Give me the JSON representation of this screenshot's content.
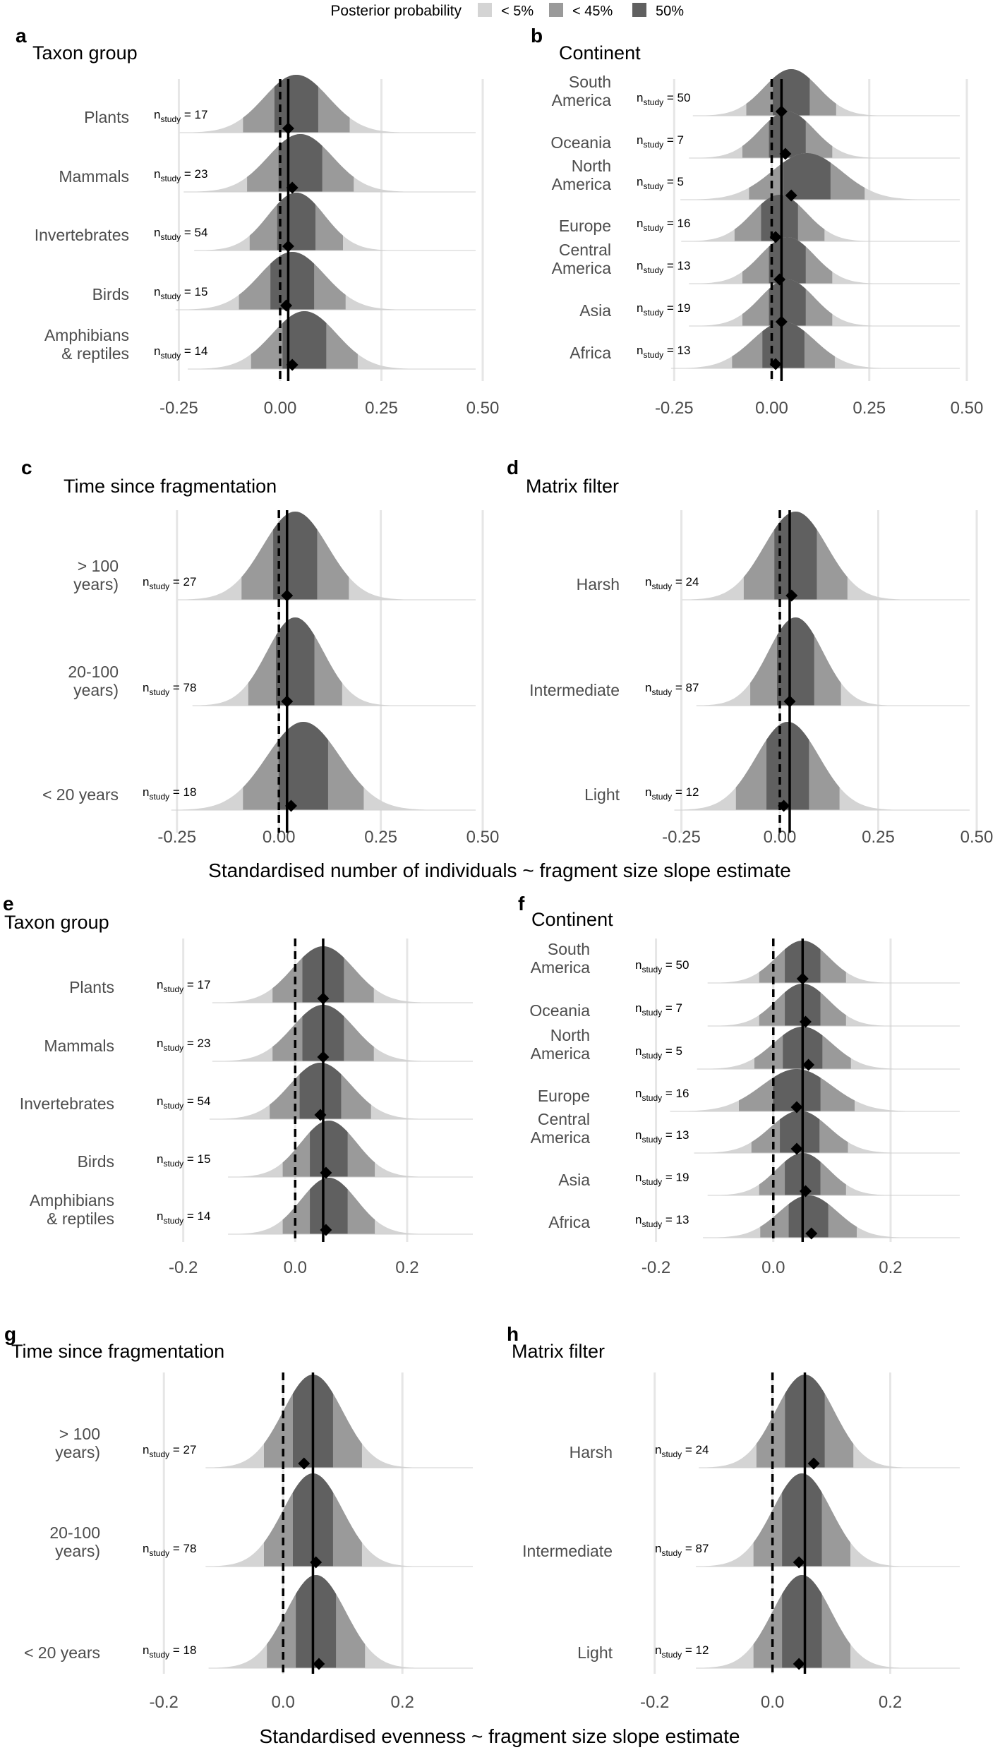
{
  "legend": {
    "title": "Posterior probability",
    "items": [
      {
        "label": "< 5%",
        "color": "#d4d4d4"
      },
      {
        "label": "< 45%",
        "color": "#9a9a9a"
      },
      {
        "label": "50%",
        "color": "#606060"
      }
    ]
  },
  "xlabels": {
    "top": "Standardised number of individuals ~ fragment size slope estimate",
    "bottom": "Standardised evenness ~ fragment size slope estimate"
  },
  "n_prefix": "n",
  "n_sub": "study",
  "chart_data": [
    {
      "id": "a",
      "letter": "a",
      "type": "area",
      "title": "Taxon group",
      "xlim": [
        -0.35,
        0.5
      ],
      "xticks": [
        -0.25,
        0,
        0.25,
        0.5
      ],
      "tick_labels": [
        "-0.25",
        "0.00",
        "0.25",
        "0.50"
      ],
      "dashed_x": 0,
      "solid_x": 0.02,
      "rows": [
        {
          "label": "Plants",
          "n": 17,
          "mean": 0.04,
          "sd": 0.08,
          "point": 0.02
        },
        {
          "label": "Mammals",
          "n": 23,
          "mean": 0.05,
          "sd": 0.08,
          "point": 0.03
        },
        {
          "label": "Invertebrates",
          "n": 54,
          "mean": 0.04,
          "sd": 0.07,
          "point": 0.02
        },
        {
          "label": "Birds",
          "n": 15,
          "mean": 0.03,
          "sd": 0.08,
          "point": 0.015
        },
        {
          "label": "Amphibians\n& reptiles",
          "n": 14,
          "mean": 0.06,
          "sd": 0.08,
          "point": 0.03
        }
      ]
    },
    {
      "id": "b",
      "letter": "b",
      "type": "area",
      "title": "Continent",
      "xlim": [
        -0.35,
        0.5
      ],
      "xticks": [
        -0.25,
        0,
        0.25,
        0.5
      ],
      "tick_labels": [
        "-0.25",
        "0.00",
        "0.25",
        "0.50"
      ],
      "dashed_x": 0,
      "solid_x": 0.025,
      "rows": [
        {
          "label": "South\nAmerica",
          "n": 50,
          "mean": 0.05,
          "sd": 0.07,
          "point": 0.025
        },
        {
          "label": "Oceania",
          "n": 7,
          "mean": 0.04,
          "sd": 0.07,
          "point": 0.035
        },
        {
          "label": "North\nAmerica",
          "n": 5,
          "mean": 0.09,
          "sd": 0.09,
          "point": 0.05
        },
        {
          "label": "Europe",
          "n": 16,
          "mean": 0.02,
          "sd": 0.07,
          "point": 0.01
        },
        {
          "label": "Central\nAmerica",
          "n": 13,
          "mean": 0.04,
          "sd": 0.07,
          "point": 0.02
        },
        {
          "label": "Asia",
          "n": 19,
          "mean": 0.04,
          "sd": 0.07,
          "point": 0.025
        },
        {
          "label": "Africa",
          "n": 13,
          "mean": 0.03,
          "sd": 0.08,
          "point": 0.01
        }
      ]
    },
    {
      "id": "c",
      "letter": "c",
      "type": "area",
      "title": "Time since fragmentation",
      "xlim": [
        -0.35,
        0.5
      ],
      "xticks": [
        -0.25,
        0,
        0.25,
        0.5
      ],
      "tick_labels": [
        "-0.25",
        "0.00",
        "0.25",
        "0.50"
      ],
      "dashed_x": 0,
      "solid_x": 0.02,
      "rows": [
        {
          "label": "> 100\nyears)",
          "n": 27,
          "mean": 0.04,
          "sd": 0.08,
          "point": 0.02
        },
        {
          "label": "20-100\nyears)",
          "n": 78,
          "mean": 0.04,
          "sd": 0.07,
          "point": 0.02
        },
        {
          "label": "< 20 years",
          "n": 18,
          "mean": 0.06,
          "sd": 0.09,
          "point": 0.03
        }
      ]
    },
    {
      "id": "d",
      "letter": "d",
      "type": "area",
      "title": "Matrix filter",
      "xlim": [
        -0.38,
        0.5
      ],
      "xticks": [
        -0.25,
        0,
        0.25,
        0.5
      ],
      "tick_labels": [
        "-0.25",
        "0.00",
        "0.25",
        "0.50"
      ],
      "dashed_x": 0,
      "solid_x": 0.025,
      "rows": [
        {
          "label": "Harsh",
          "n": 24,
          "mean": 0.04,
          "sd": 0.08,
          "point": 0.03
        },
        {
          "label": "Intermediate",
          "n": 87,
          "mean": 0.04,
          "sd": 0.07,
          "point": 0.025
        },
        {
          "label": "Light",
          "n": 12,
          "mean": 0.02,
          "sd": 0.08,
          "point": 0.01
        }
      ]
    },
    {
      "id": "e",
      "letter": "e",
      "type": "area",
      "title": "Taxon group",
      "xlim": [
        -0.25,
        0.33
      ],
      "xticks": [
        -0.2,
        0,
        0.2
      ],
      "tick_labels": [
        "-0.2",
        "0.0",
        "0.2"
      ],
      "dashed_x": 0,
      "solid_x": 0.05,
      "rows": [
        {
          "label": "Plants",
          "n": 17,
          "mean": 0.05,
          "sd": 0.055,
          "point": 0.05
        },
        {
          "label": "Mammals",
          "n": 23,
          "mean": 0.05,
          "sd": 0.055,
          "point": 0.05
        },
        {
          "label": "Invertebrates",
          "n": 54,
          "mean": 0.045,
          "sd": 0.055,
          "point": 0.045
        },
        {
          "label": "Birds",
          "n": 15,
          "mean": 0.06,
          "sd": 0.05,
          "point": 0.055
        },
        {
          "label": "Amphibians\n& reptiles",
          "n": 14,
          "mean": 0.06,
          "sd": 0.05,
          "point": 0.055
        }
      ]
    },
    {
      "id": "f",
      "letter": "f",
      "type": "area",
      "title": "Continent",
      "xlim": [
        -0.25,
        0.33
      ],
      "xticks": [
        -0.2,
        0,
        0.2
      ],
      "tick_labels": [
        "-0.2",
        "0.0",
        "0.2"
      ],
      "dashed_x": 0,
      "solid_x": 0.05,
      "rows": [
        {
          "label": "South\nAmerica",
          "n": 50,
          "mean": 0.05,
          "sd": 0.045,
          "point": 0.05
        },
        {
          "label": "Oceania",
          "n": 7,
          "mean": 0.05,
          "sd": 0.045,
          "point": 0.055
        },
        {
          "label": "North\nAmerica",
          "n": 5,
          "mean": 0.05,
          "sd": 0.05,
          "point": 0.06
        },
        {
          "label": "Europe",
          "n": 16,
          "mean": 0.04,
          "sd": 0.06,
          "point": 0.04
        },
        {
          "label": "Central\nAmerica",
          "n": 13,
          "mean": 0.045,
          "sd": 0.05,
          "point": 0.04
        },
        {
          "label": "Asia",
          "n": 19,
          "mean": 0.05,
          "sd": 0.045,
          "point": 0.055
        },
        {
          "label": "Africa",
          "n": 13,
          "mean": 0.06,
          "sd": 0.05,
          "point": 0.065
        }
      ]
    },
    {
      "id": "g",
      "letter": "g",
      "type": "area",
      "title": "Time since fragmentation",
      "xlim": [
        -0.25,
        0.33
      ],
      "xticks": [
        -0.2,
        0,
        0.2
      ],
      "tick_labels": [
        "-0.2",
        "0.0",
        "0.2"
      ],
      "dashed_x": 0,
      "solid_x": 0.05,
      "rows": [
        {
          "label": "> 100\nyears)",
          "n": 27,
          "mean": 0.05,
          "sd": 0.05,
          "point": 0.035
        },
        {
          "label": "20-100\nyears)",
          "n": 78,
          "mean": 0.05,
          "sd": 0.05,
          "point": 0.055
        },
        {
          "label": "< 20 years",
          "n": 18,
          "mean": 0.055,
          "sd": 0.05,
          "point": 0.06
        }
      ]
    },
    {
      "id": "h",
      "letter": "h",
      "type": "area",
      "title": "Matrix filter",
      "xlim": [
        -0.25,
        0.33
      ],
      "xticks": [
        -0.2,
        0,
        0.2
      ],
      "tick_labels": [
        "-0.2",
        "0.0",
        "0.2"
      ],
      "dashed_x": 0,
      "solid_x": 0.055,
      "rows": [
        {
          "label": "Harsh",
          "n": 24,
          "mean": 0.055,
          "sd": 0.05,
          "point": 0.07
        },
        {
          "label": "Intermediate",
          "n": 87,
          "mean": 0.05,
          "sd": 0.05,
          "point": 0.045
        },
        {
          "label": "Light",
          "n": 12,
          "mean": 0.05,
          "sd": 0.05,
          "point": 0.045
        }
      ]
    }
  ]
}
